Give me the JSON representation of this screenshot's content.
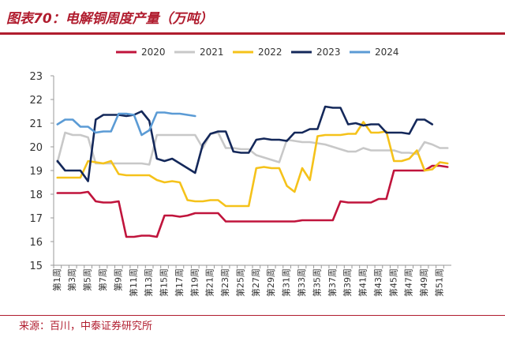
{
  "header": {
    "title": "图表70：电解铜周度产量（万吨）"
  },
  "footer": {
    "source": "来源：百川，中泰证券研究所"
  },
  "colors": {
    "accent": "#b01c2e",
    "axis": "#999999"
  },
  "chart_data": {
    "type": "line",
    "title": "",
    "xlabel": "",
    "ylabel": "",
    "ylim": [
      15,
      23
    ],
    "yticks": [
      15,
      16,
      17,
      18,
      19,
      20,
      21,
      22,
      23
    ],
    "grid": false,
    "legend_position": "top",
    "x": [
      "第1周",
      "第2周",
      "第3周",
      "第4周",
      "第5周",
      "第6周",
      "第7周",
      "第8周",
      "第9周",
      "第10周",
      "第11周",
      "第12周",
      "第13周",
      "第14周",
      "第15周",
      "第16周",
      "第17周",
      "第18周",
      "第19周",
      "第20周",
      "第21周",
      "第22周",
      "第23周",
      "第24周",
      "第25周",
      "第26周",
      "第27周",
      "第28周",
      "第29周",
      "第30周",
      "第31周",
      "第32周",
      "第33周",
      "第34周",
      "第35周",
      "第36周",
      "第37周",
      "第38周",
      "第39周",
      "第40周",
      "第41周",
      "第42周",
      "第43周",
      "第44周",
      "第45周",
      "第46周",
      "第47周",
      "第48周",
      "第49周",
      "第50周",
      "第51周",
      "第52周"
    ],
    "x_tick_labels": [
      "第1周",
      "第3周",
      "第5周",
      "第7周",
      "第9周",
      "第11周",
      "第13周",
      "第15周",
      "第17周",
      "第19周",
      "第21周",
      "第23周",
      "第25周",
      "第27周",
      "第29周",
      "第31周",
      "第33周",
      "第35周",
      "第37周",
      "第39周",
      "第41周",
      "第43周",
      "第45周",
      "第47周",
      "第49周",
      "第51周"
    ],
    "series": [
      {
        "name": "2020",
        "color": "#c0143c",
        "values": [
          18.05,
          18.05,
          18.05,
          18.05,
          18.1,
          17.7,
          17.65,
          17.65,
          17.7,
          16.2,
          16.2,
          16.25,
          16.25,
          16.2,
          17.1,
          17.1,
          17.05,
          17.1,
          17.2,
          17.2,
          17.2,
          17.2,
          16.85,
          16.85,
          16.85,
          16.85,
          16.85,
          16.85,
          16.85,
          16.85,
          16.85,
          16.85,
          16.9,
          16.9,
          16.9,
          16.9,
          16.9,
          17.7,
          17.65,
          17.65,
          17.65,
          17.65,
          17.8,
          17.8,
          19.0,
          19.0,
          19.0,
          19.0,
          19.0,
          19.2,
          19.2,
          19.15
        ]
      },
      {
        "name": "2021",
        "color": "#c8c8c8",
        "values": [
          19.35,
          20.6,
          20.5,
          20.5,
          20.4,
          19.3,
          19.3,
          19.3,
          19.3,
          19.3,
          19.3,
          19.3,
          19.25,
          20.5,
          20.5,
          20.5,
          20.5,
          20.5,
          20.5,
          19.95,
          20.55,
          20.6,
          19.95,
          19.95,
          19.9,
          19.9,
          19.65,
          19.55,
          19.45,
          19.35,
          20.3,
          20.25,
          20.2,
          20.2,
          20.15,
          20.1,
          20.0,
          19.9,
          19.8,
          19.8,
          19.95,
          19.85,
          19.85,
          19.85,
          19.85,
          19.75,
          19.75,
          19.7,
          20.2,
          20.1,
          19.95,
          19.95
        ]
      },
      {
        "name": "2022",
        "color": "#f5c21a",
        "values": [
          18.7,
          18.7,
          18.7,
          18.7,
          19.4,
          19.35,
          19.3,
          19.4,
          18.85,
          18.8,
          18.8,
          18.8,
          18.8,
          18.6,
          18.5,
          18.55,
          18.5,
          17.75,
          17.7,
          17.7,
          17.75,
          17.75,
          17.5,
          17.5,
          17.5,
          17.5,
          19.1,
          19.15,
          19.1,
          19.1,
          18.35,
          18.1,
          19.1,
          18.6,
          20.45,
          20.5,
          20.5,
          20.5,
          20.55,
          20.55,
          21.05,
          20.6,
          20.6,
          20.65,
          19.4,
          19.4,
          19.5,
          19.85,
          19.0,
          19.05,
          19.35,
          19.3
        ]
      },
      {
        "name": "2023",
        "color": "#14285a",
        "values": [
          19.4,
          19.0,
          19.0,
          19.0,
          18.55,
          21.15,
          21.35,
          21.35,
          21.35,
          21.3,
          21.35,
          21.5,
          21.1,
          19.5,
          19.4,
          19.5,
          19.3,
          19.1,
          18.9,
          20.1,
          20.55,
          20.65,
          20.65,
          19.8,
          19.75,
          19.75,
          20.3,
          20.35,
          20.3,
          20.3,
          20.25,
          20.6,
          20.6,
          20.75,
          20.75,
          21.7,
          21.65,
          21.65,
          20.95,
          21.0,
          20.9,
          20.95,
          20.95,
          20.6,
          20.6,
          20.6,
          20.55,
          21.15,
          21.15,
          20.95,
          null,
          null
        ]
      },
      {
        "name": "2024",
        "color": "#5b9bd5",
        "values": [
          20.95,
          21.15,
          21.15,
          20.85,
          20.85,
          20.6,
          20.65,
          20.65,
          21.4,
          21.4,
          21.35,
          20.5,
          20.7,
          21.45,
          21.45,
          21.4,
          21.4,
          21.35,
          21.3,
          null,
          null,
          null,
          null,
          null,
          null,
          null,
          null,
          null,
          null,
          null,
          null,
          null,
          null,
          null,
          null,
          null,
          null,
          null,
          null,
          null,
          null,
          null,
          null,
          null,
          null,
          null,
          null,
          null,
          null,
          null,
          null,
          null
        ]
      }
    ]
  }
}
